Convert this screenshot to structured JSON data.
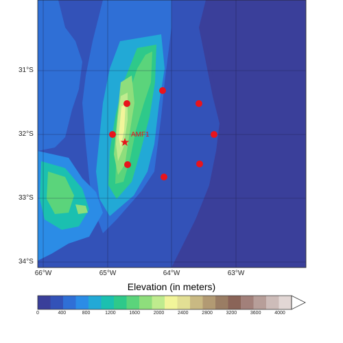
{
  "map": {
    "lat_labels": [
      "31°S",
      "32°S",
      "33°S",
      "34°S"
    ],
    "lon_labels": [
      "66°W",
      "65°W",
      "64°W",
      "63°W"
    ],
    "station_label": "AMF1",
    "station_color": "#e8141c",
    "site_count_visible": 9
  },
  "colorbar": {
    "title": "Elevation (in meters)",
    "tick_labels": [
      "0",
      "400",
      "800",
      "1200",
      "1600",
      "2000",
      "2400",
      "2800",
      "3200",
      "3600",
      "4000"
    ],
    "colors": [
      "#3a3f9a",
      "#3352b8",
      "#2f6fd6",
      "#2b8ce6",
      "#22a9d6",
      "#1bc0b0",
      "#2ec98a",
      "#5bd47b",
      "#8ede7c",
      "#bfeb8e",
      "#f2f59a",
      "#e2df94",
      "#c9b983",
      "#b29a73",
      "#9a7d64",
      "#8a6458",
      "#a2807a",
      "#b79e99",
      "#cdbcb9",
      "#e2d7d5"
    ],
    "extend_color": "#ffffff"
  }
}
